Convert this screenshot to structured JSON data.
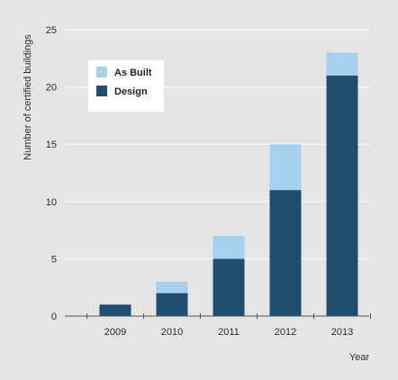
{
  "chart_data": {
    "type": "bar",
    "stacked": true,
    "title": "",
    "xlabel": "Year",
    "ylabel": "Number of certified buildings",
    "categories": [
      "2009",
      "2010",
      "2011",
      "2012",
      "2013"
    ],
    "series": [
      {
        "name": "Design",
        "values": [
          1,
          2,
          5,
          11,
          21
        ],
        "color": "#1f4e6e"
      },
      {
        "name": "As Built",
        "values": [
          0,
          1,
          2,
          4,
          2
        ],
        "color": "#a7d0ee"
      }
    ],
    "ylim": [
      0,
      25
    ],
    "yticks": [
      0,
      5,
      10,
      15,
      20,
      25
    ],
    "grid": true,
    "grid_color": "#ffffff",
    "background_color": "#e5e5e6",
    "legend": {
      "placement": "top-left",
      "entries": [
        {
          "label": "As Built",
          "color": "#a7d0ee"
        },
        {
          "label": "Design",
          "color": "#1f4e6e"
        }
      ]
    }
  }
}
